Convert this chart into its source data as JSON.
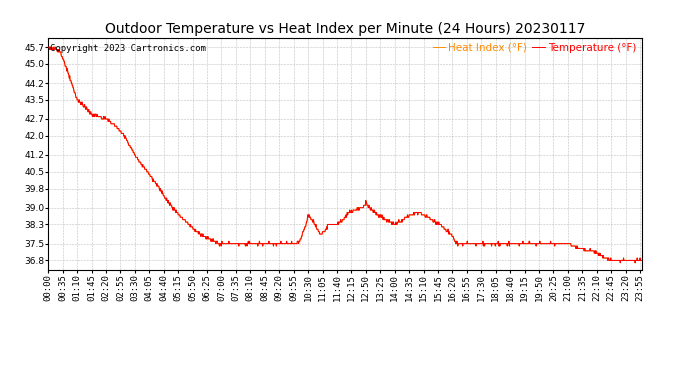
{
  "title": "Outdoor Temperature vs Heat Index per Minute (24 Hours) 20230117",
  "copyright": "Copyright 2023 Cartronics.com",
  "legend_heat_index": "Heat Index (°F)",
  "legend_temperature": "Temperature (°F)",
  "heat_index_color": "#FF8C00",
  "temperature_color": "#FF0000",
  "background_color": "#FFFFFF",
  "grid_color": "#C0C0C0",
  "yticks": [
    36.8,
    37.5,
    38.3,
    39.0,
    39.8,
    40.5,
    41.2,
    42.0,
    42.7,
    43.5,
    44.2,
    45.0,
    45.7
  ],
  "ylim": [
    36.4,
    46.1
  ],
  "title_fontsize": 10,
  "tick_fontsize": 6.5,
  "copyright_fontsize": 6.5,
  "legend_fontsize": 7.5
}
